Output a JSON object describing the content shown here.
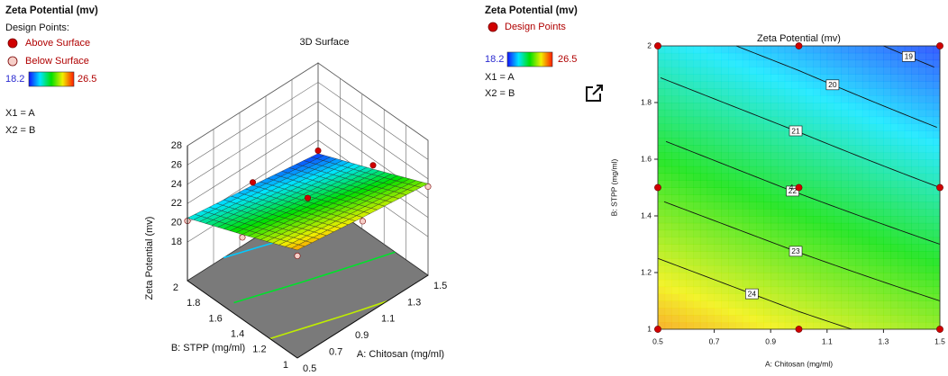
{
  "chart_data": [
    {
      "type": "surface3d",
      "title": "3D Surface",
      "legend": {
        "title": "Zeta Potential (mv)",
        "points_title": "Design Points:",
        "above_label": "Above Surface",
        "below_label": "Below Surface",
        "color_min": 18.2,
        "color_max": 26.5,
        "factors": [
          "X1 = A",
          "X2 = B"
        ]
      },
      "colormap": [
        "#1010ff",
        "#00e5ff",
        "#00e000",
        "#f0f000",
        "#ff1a00"
      ],
      "xlabel": "A: Chitosan (mg/ml)",
      "ylabel": "B: STPP (mg/ml)",
      "zlabel": "Zeta Potential (mv)",
      "xlim": [
        0.5,
        1.5
      ],
      "xticks": [
        0.5,
        0.7,
        0.9,
        1.1,
        1.3,
        1.5
      ],
      "ylim": [
        1,
        2
      ],
      "yticks": [
        1,
        1.2,
        1.4,
        1.6,
        1.8,
        2
      ],
      "zlim": [
        14,
        28
      ],
      "zticks": [
        18,
        20,
        22,
        24,
        26,
        28
      ],
      "surface": {
        "x": [
          0.5,
          1,
          1.5
        ],
        "y": [
          1,
          1.5,
          2
        ],
        "z": [
          [
            25.2,
            24.3,
            23.5
          ],
          [
            22.8,
            21.9,
            21.0
          ],
          [
            20.5,
            19.6,
            18.6
          ]
        ]
      },
      "design_points": {
        "x": [
          0.5,
          1,
          1.5,
          0.5,
          1,
          1.5,
          0.5,
          1,
          1.5
        ],
        "y": [
          1,
          1,
          1,
          1.5,
          1.5,
          1.5,
          2,
          2,
          2
        ],
        "z": [
          24.6,
          23.9,
          23.2,
          22.5,
          22.3,
          21.4,
          20.2,
          19.9,
          18.9
        ],
        "above_color": "#d00000",
        "below_color": "#f6cfc8"
      },
      "floor_color": "#7a7a7a"
    },
    {
      "type": "contour",
      "title": "Zeta Potential (mv)",
      "legend": {
        "title": "Zeta Potential (mv)",
        "points_label": "Design Points",
        "color_min": 18.2,
        "color_max": 26.5,
        "factors": [
          "X1 = A",
          "X2 = B"
        ]
      },
      "colormap": [
        "#1010ff",
        "#00e5ff",
        "#00e000",
        "#f0f000",
        "#ff1a00"
      ],
      "xlabel": "A: Chitosan (mg/ml)",
      "ylabel": "B: STPP (mg/ml)",
      "xlim": [
        0.5,
        1.5
      ],
      "xticks": [
        0.5,
        0.7,
        0.9,
        1.1,
        1.3,
        1.5
      ],
      "ylim": [
        1,
        2
      ],
      "yticks": [
        1,
        1.2,
        1.4,
        1.6,
        1.8,
        2
      ],
      "surface": {
        "x": [
          0.5,
          1,
          1.5
        ],
        "y": [
          1,
          1.5,
          2
        ],
        "z": [
          [
            25.2,
            24.3,
            23.5
          ],
          [
            22.8,
            21.9,
            21.0
          ],
          [
            20.5,
            19.6,
            18.6
          ]
        ]
      },
      "levels": [
        19,
        20,
        21,
        22,
        23,
        24
      ],
      "design_points": {
        "x": [
          0.5,
          1,
          1.5,
          0.5,
          1,
          1.5,
          0.5,
          1,
          1.5
        ],
        "y": [
          1,
          1,
          1,
          1.5,
          1.5,
          1.5,
          2,
          2,
          2
        ],
        "point_labels": [
          null,
          null,
          null,
          null,
          "4",
          null,
          null,
          null,
          null
        ],
        "color": "#d00000"
      }
    }
  ]
}
